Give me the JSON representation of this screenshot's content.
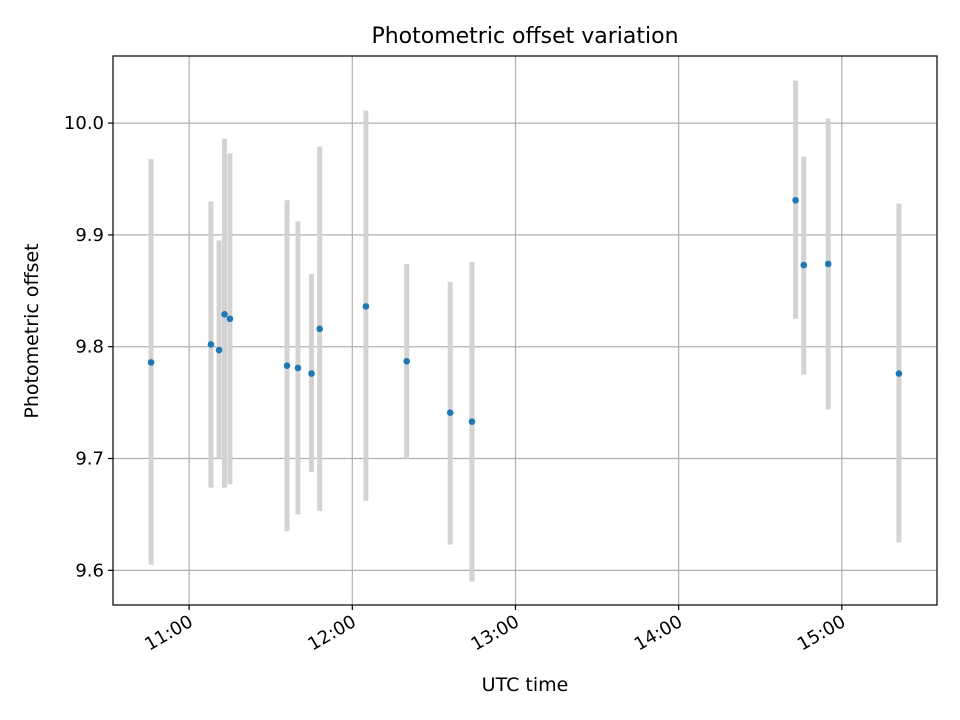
{
  "chart_data": {
    "type": "scatter",
    "title": "Photometric offset variation",
    "xlabel": "UTC time",
    "ylabel": "Photometric offset",
    "x_axis_kind": "time",
    "x_range": [
      "10:32",
      "15:35"
    ],
    "ylim": [
      9.569,
      10.06
    ],
    "x_ticks": [
      "11:00",
      "12:00",
      "13:00",
      "14:00",
      "15:00"
    ],
    "y_ticks": [
      9.6,
      9.7,
      9.8,
      9.9,
      10.0
    ],
    "y_tick_labels": [
      "9.6",
      "9.7",
      "9.8",
      "9.9",
      "10.0"
    ],
    "grid": true,
    "errorbar_color": "#d3d3d3",
    "marker_color": "#1f77b4",
    "points": [
      {
        "x": "10:46",
        "y": 9.786,
        "ylow": 9.605,
        "yhigh": 9.968
      },
      {
        "x": "11:08",
        "y": 9.802,
        "ylow": 9.674,
        "yhigh": 9.93
      },
      {
        "x": "11:11",
        "y": 9.797,
        "ylow": 9.7,
        "yhigh": 9.895
      },
      {
        "x": "11:13",
        "y": 9.829,
        "ylow": 9.674,
        "yhigh": 9.986
      },
      {
        "x": "11:15",
        "y": 9.825,
        "ylow": 9.677,
        "yhigh": 9.973
      },
      {
        "x": "11:36",
        "y": 9.783,
        "ylow": 9.635,
        "yhigh": 9.931
      },
      {
        "x": "11:40",
        "y": 9.781,
        "ylow": 9.65,
        "yhigh": 9.912
      },
      {
        "x": "11:45",
        "y": 9.776,
        "ylow": 9.688,
        "yhigh": 9.865
      },
      {
        "x": "11:48",
        "y": 9.816,
        "ylow": 9.653,
        "yhigh": 9.979
      },
      {
        "x": "12:05",
        "y": 9.836,
        "ylow": 9.662,
        "yhigh": 10.011
      },
      {
        "x": "12:20",
        "y": 9.787,
        "ylow": 9.7,
        "yhigh": 9.874
      },
      {
        "x": "12:36",
        "y": 9.741,
        "ylow": 9.623,
        "yhigh": 9.858
      },
      {
        "x": "12:44",
        "y": 9.733,
        "ylow": 9.59,
        "yhigh": 9.876
      },
      {
        "x": "14:43",
        "y": 9.931,
        "ylow": 9.825,
        "yhigh": 10.038
      },
      {
        "x": "14:46",
        "y": 9.873,
        "ylow": 9.775,
        "yhigh": 9.97
      },
      {
        "x": "14:55",
        "y": 9.874,
        "ylow": 9.744,
        "yhigh": 10.004
      },
      {
        "x": "15:21",
        "y": 9.776,
        "ylow": 9.625,
        "yhigh": 9.928
      }
    ]
  }
}
